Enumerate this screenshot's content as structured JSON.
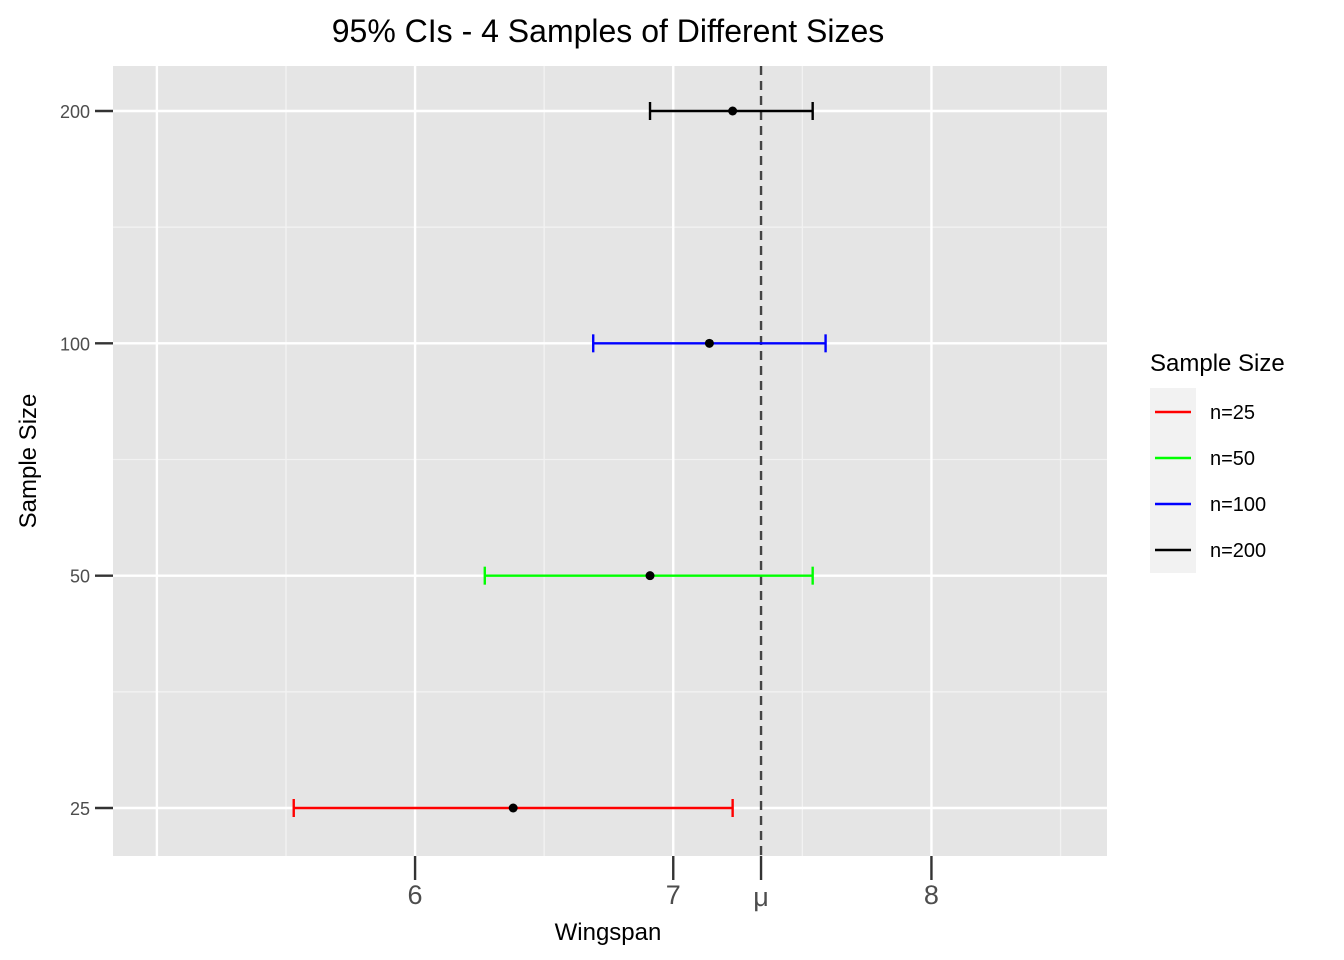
{
  "chart_data": {
    "type": "errorbar",
    "title": "95% CIs - 4 Samples of Different Sizes",
    "xlabel": "Wingspan",
    "ylabel": "Sample Size",
    "xlim": [
      4.83,
      8.68
    ],
    "x_ticks": [
      6,
      7,
      8
    ],
    "x_ref_line": {
      "value": 7.34,
      "label": "μ",
      "style": "dashed",
      "color": "#444444"
    },
    "y_categories": [
      "25",
      "50",
      "100",
      "200"
    ],
    "series": [
      {
        "name": "n=25",
        "category": "25",
        "mean": 6.38,
        "lower": 5.53,
        "upper": 7.23,
        "color": "#ff0000"
      },
      {
        "name": "n=50",
        "category": "50",
        "mean": 6.91,
        "lower": 6.27,
        "upper": 7.54,
        "color": "#00ff00"
      },
      {
        "name": "n=100",
        "category": "100",
        "mean": 7.14,
        "lower": 6.69,
        "upper": 7.59,
        "color": "#0000ff"
      },
      {
        "name": "n=200",
        "category": "200",
        "mean": 7.23,
        "lower": 6.91,
        "upper": 7.54,
        "color": "#000000"
      }
    ],
    "point_color": "#000000",
    "legend": {
      "title": "Sample Size",
      "position": "right",
      "items": [
        "n=25",
        "n=50",
        "n=100",
        "n=200"
      ]
    },
    "grid": true,
    "panel_background": "#e5e5e5"
  }
}
